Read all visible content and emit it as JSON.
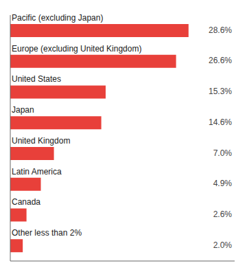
{
  "chart_data": {
    "type": "bar",
    "orientation": "horizontal",
    "categories": [
      "Pacific (excluding Japan)",
      "Europe (excluding United Kingdom)",
      "United States",
      "Japan",
      "United Kingdom",
      "Latin America",
      "Canada",
      "Other less than 2%"
    ],
    "values": [
      28.6,
      26.6,
      15.3,
      14.6,
      7.0,
      4.9,
      2.6,
      2.0
    ],
    "value_labels": [
      "28.6%",
      "26.6%",
      "15.3%",
      "14.6%",
      "7.0%",
      "4.9%",
      "2.6%",
      "2.0%"
    ],
    "data_labels": true,
    "color": "#e8403a",
    "xlim": [
      0,
      36
    ],
    "tick_labels": false,
    "grid": false
  }
}
